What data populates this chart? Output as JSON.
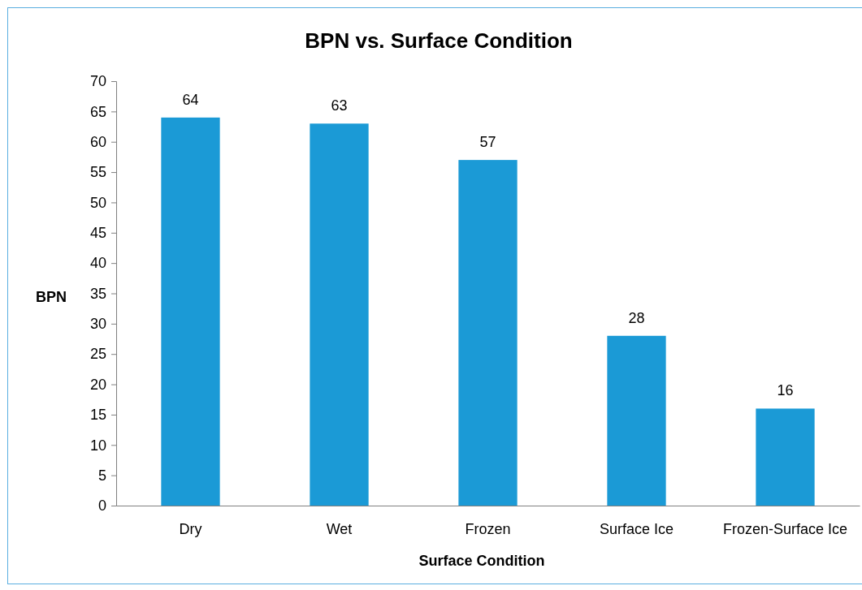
{
  "chart_data": {
    "type": "bar",
    "title": "BPN vs. Surface Condition",
    "xlabel": "Surface Condition",
    "ylabel": "BPN",
    "categories": [
      "Dry",
      "Wet",
      "Frozen",
      "Surface Ice",
      "Frozen-Surface Ice"
    ],
    "values": [
      64,
      63,
      57,
      28,
      16
    ],
    "color": "#1b9ad6",
    "ylim": [
      0,
      70
    ],
    "yticks": [
      0,
      5,
      10,
      15,
      20,
      25,
      30,
      35,
      40,
      45,
      50,
      55,
      60,
      65,
      70
    ],
    "grid": false,
    "data_labels": true
  }
}
